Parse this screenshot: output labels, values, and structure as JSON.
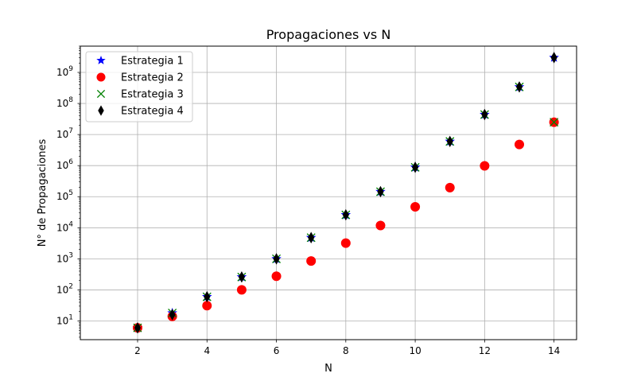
{
  "chart_data": {
    "type": "scatter",
    "title": "Propagaciones vs N",
    "xlabel": "N",
    "ylabel": "N° de Propagaciones",
    "xlim": [
      0.35,
      14.65
    ],
    "ylim": [
      2.5,
      7000000000
    ],
    "yscale": "log",
    "grid": true,
    "legend_position": "top-left",
    "x_ticks": [
      2,
      4,
      6,
      8,
      10,
      12,
      14
    ],
    "y_ticks": [
      {
        "value": 10,
        "base": "10",
        "exp": "1"
      },
      {
        "value": 100,
        "base": "10",
        "exp": "2"
      },
      {
        "value": 1000,
        "base": "10",
        "exp": "3"
      },
      {
        "value": 10000,
        "base": "10",
        "exp": "4"
      },
      {
        "value": 100000,
        "base": "10",
        "exp": "5"
      },
      {
        "value": 1000000,
        "base": "10",
        "exp": "6"
      },
      {
        "value": 10000000,
        "base": "10",
        "exp": "7"
      },
      {
        "value": 100000000,
        "base": "10",
        "exp": "8"
      },
      {
        "value": 1000000000,
        "base": "10",
        "exp": "9"
      }
    ],
    "series": [
      {
        "name": "Estrategia 1",
        "marker": "star",
        "color": "#0000ff",
        "x": [
          2,
          3,
          4,
          5,
          6,
          7,
          8,
          9,
          10,
          11,
          12,
          13,
          14
        ],
        "y": [
          6,
          18,
          60,
          260,
          1000,
          4800,
          26000,
          145000,
          880000,
          6000000,
          44000000,
          340000000,
          3000000000
        ]
      },
      {
        "name": "Estrategia 2",
        "marker": "circle",
        "color": "#ff0000",
        "x": [
          2,
          3,
          4,
          5,
          6,
          7,
          8,
          9,
          10,
          11,
          12,
          13,
          14
        ],
        "y": [
          6,
          14,
          31,
          100,
          275,
          850,
          3200,
          11800,
          47000,
          195000,
          980000,
          4800000,
          25000000
        ]
      },
      {
        "name": "Estrategia 3",
        "marker": "x",
        "color": "#008000",
        "x": [
          2,
          3,
          4,
          5,
          6,
          7,
          8,
          9,
          10,
          11,
          12,
          13,
          14
        ],
        "y": [
          6,
          18,
          60,
          260,
          1000,
          4800,
          26000,
          145000,
          880000,
          6000000,
          44000000,
          340000000,
          25000000
        ]
      },
      {
        "name": "Estrategia 4",
        "marker": "thin_diamond",
        "color": "#000000",
        "x": [
          2,
          3,
          4,
          5,
          6,
          7,
          8,
          9,
          10,
          11,
          12,
          13,
          14
        ],
        "y": [
          6,
          16,
          60,
          260,
          1000,
          4800,
          26000,
          145000,
          880000,
          6000000,
          44000000,
          340000000,
          3000000000
        ]
      }
    ]
  }
}
